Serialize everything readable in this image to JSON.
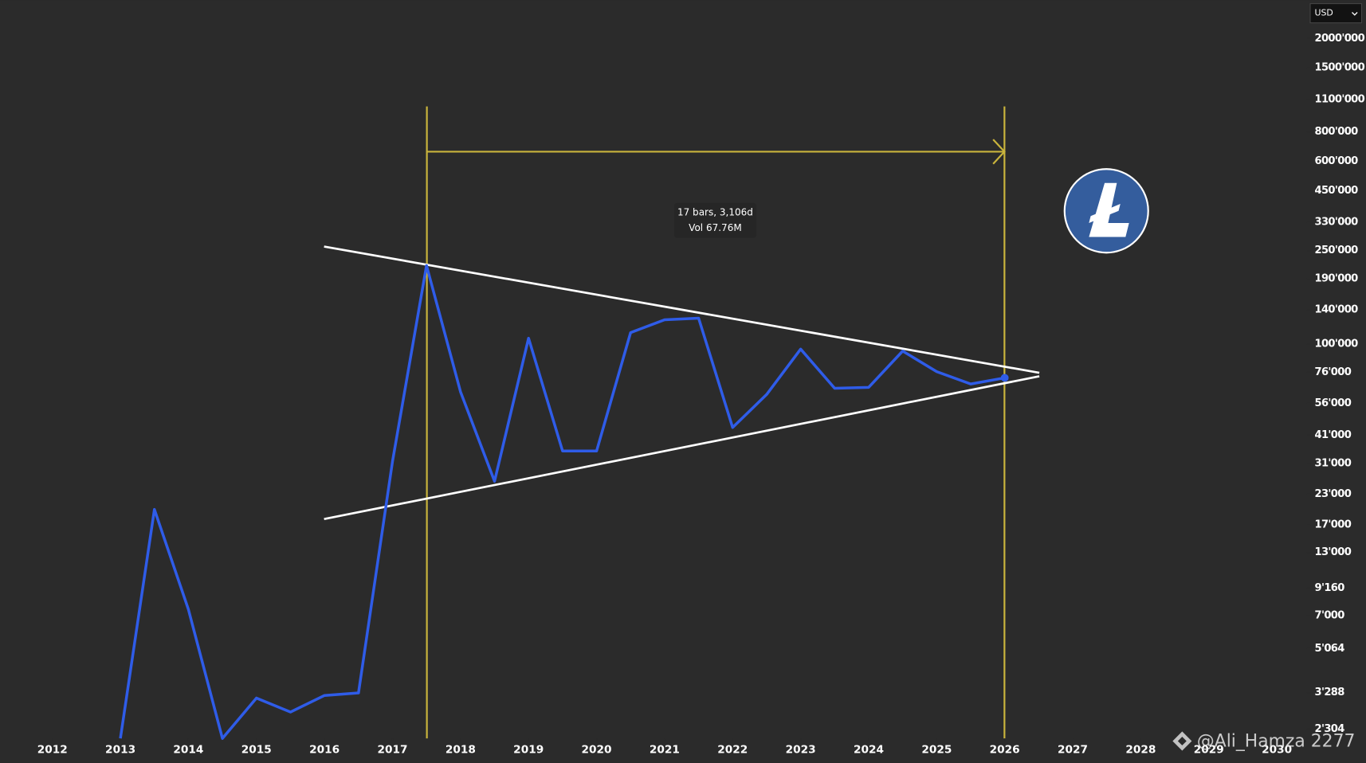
{
  "chart_data": {
    "type": "line",
    "log_scale": true,
    "grid": false,
    "currency": "USD",
    "annotations": [
      "17 bars, 3,106d",
      "Vol 67.76M"
    ],
    "watermark": "@Ali_Hamza 2277",
    "x": [
      2013.0,
      2013.5,
      2014.0,
      2014.5,
      2015.0,
      2015.5,
      2016.0,
      2016.5,
      2017.0,
      2017.5,
      2018.0,
      2018.5,
      2019.0,
      2019.5,
      2020.0,
      2020.5,
      2021.0,
      2021.5,
      2022.0,
      2022.5,
      2023.0,
      2023.5,
      2024.0,
      2024.5,
      2025.0,
      2025.5,
      2026.0
    ],
    "series": [
      {
        "color": "#2f5ce8",
        "values": [
          2100,
          19800,
          7430,
          2100,
          3120,
          2720,
          3200,
          3280,
          31700,
          216000,
          62700,
          26100,
          106000,
          35100,
          35100,
          112000,
          127000,
          129000,
          44200,
          61100,
          95300,
          64900,
          65500,
          93500,
          76400,
          67700,
          71900
        ]
      }
    ],
    "xlim": [
      2011.23,
      2030.44
    ],
    "xticks": [
      2012,
      2013,
      2014,
      2015,
      2016,
      2017,
      2018,
      2019,
      2020,
      2021,
      2022,
      2023,
      2024,
      2025,
      2026,
      2027,
      2028,
      2029,
      2030
    ],
    "ylim": [
      2100,
      2910000
    ],
    "yticks": [
      {
        "value": 2000000,
        "label": "2000'000"
      },
      {
        "value": 1500000,
        "label": "1500'000"
      },
      {
        "value": 1100000,
        "label": "1100'000"
      },
      {
        "value": 800000,
        "label": "800'000"
      },
      {
        "value": 600000,
        "label": "600'000"
      },
      {
        "value": 450000,
        "label": "450'000"
      },
      {
        "value": 330000,
        "label": "330'000"
      },
      {
        "value": 250000,
        "label": "250'000"
      },
      {
        "value": 190000,
        "label": "190'000"
      },
      {
        "value": 140000,
        "label": "140'000"
      },
      {
        "value": 100000,
        "label": "100'000"
      },
      {
        "value": 76000,
        "label": "76'000"
      },
      {
        "value": 56000,
        "label": "56'000"
      },
      {
        "value": 41000,
        "label": "41'000"
      },
      {
        "value": 31000,
        "label": "31'000"
      },
      {
        "value": 23000,
        "label": "23'000"
      },
      {
        "value": 17000,
        "label": "17'000"
      },
      {
        "value": 13000,
        "label": "13'000"
      },
      {
        "value": 9160,
        "label": "9'160"
      },
      {
        "value": 7000,
        "label": "7'000"
      },
      {
        "value": 5064,
        "label": "5'064"
      },
      {
        "value": 3288,
        "label": "3'288"
      },
      {
        "value": 2304,
        "label": "2'304"
      }
    ]
  }
}
